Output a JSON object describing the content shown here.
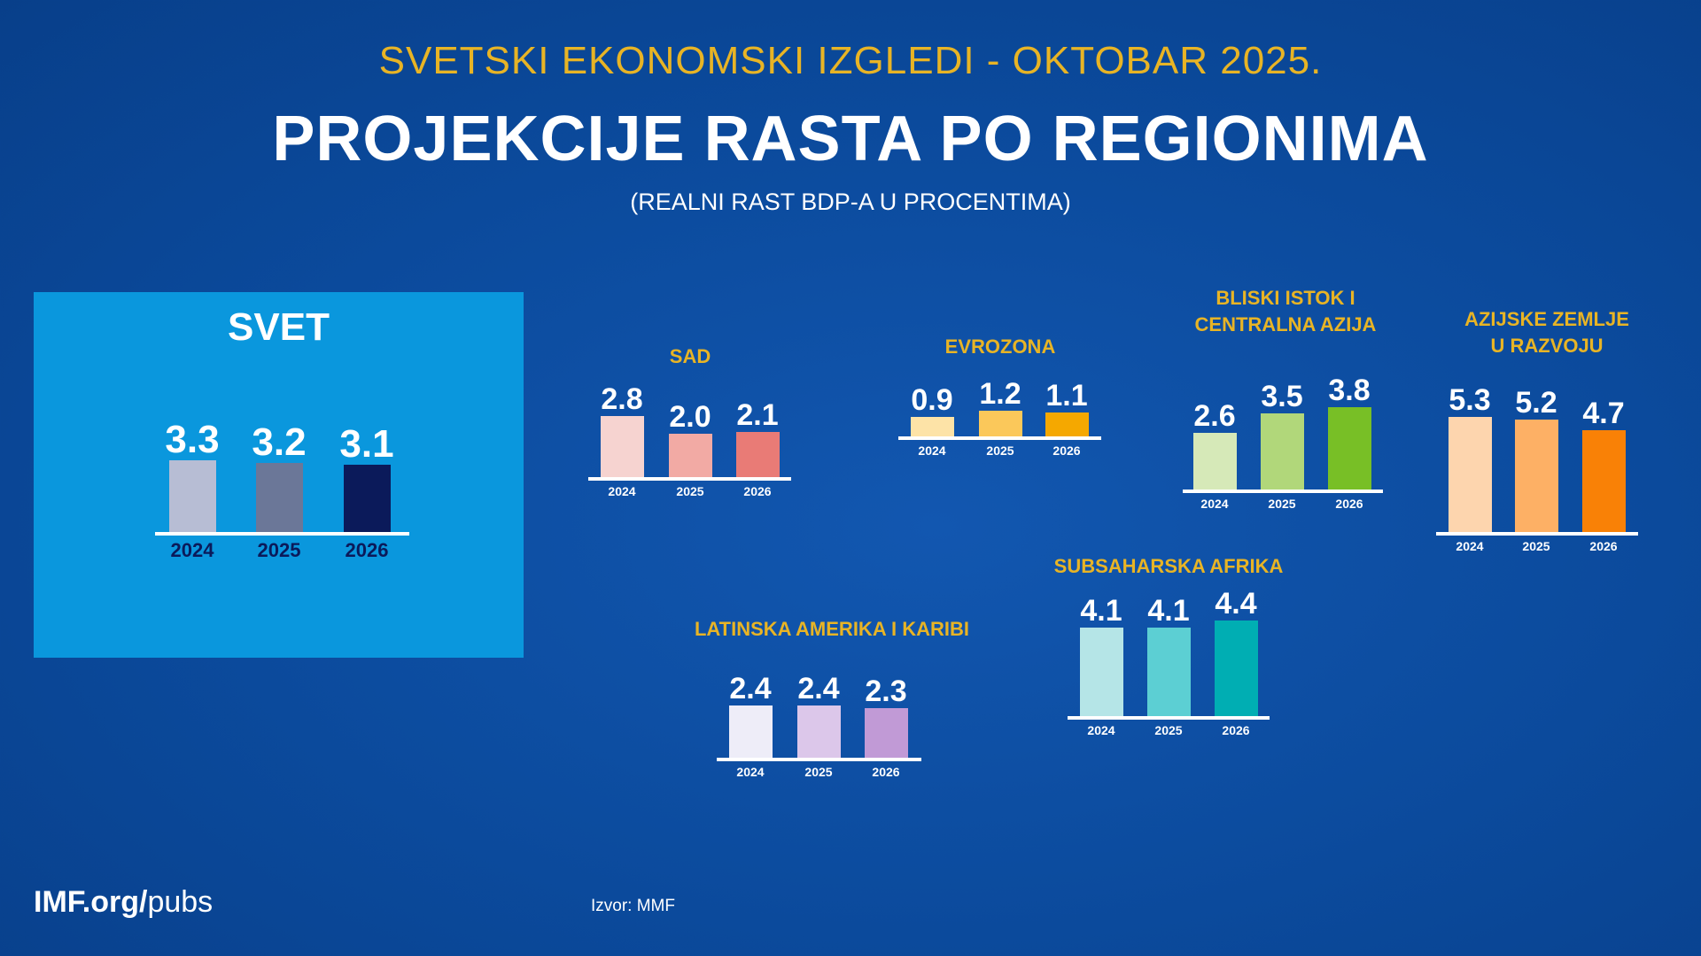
{
  "header": {
    "kicker": "SVETSKI EKONOMSKI IZGLEDI - OKTOBAR 2025.",
    "title": "PROJEKCIJE RASTA PO REGIONIMA",
    "subtitle": "(REALNI RAST BDP-A U PROCENTIMA)"
  },
  "footer": {
    "logo_bold": "IMF.org/",
    "logo_light": "pubs",
    "source": "Izvor: MMF"
  },
  "chart_data": [
    {
      "type": "bar",
      "id": "svet",
      "title": "SVET",
      "categories": [
        "2024",
        "2025",
        "2026"
      ],
      "values": [
        3.3,
        3.2,
        3.1
      ],
      "colors": [
        "#b7bdd4",
        "#6b7798",
        "#0b1a5a"
      ]
    },
    {
      "type": "bar",
      "id": "sad",
      "title": "SAD",
      "categories": [
        "2024",
        "2025",
        "2026"
      ],
      "values": [
        2.8,
        2.0,
        2.1
      ],
      "colors": [
        "#f6d3d0",
        "#f2aaa4",
        "#e97b76"
      ]
    },
    {
      "type": "bar",
      "id": "evrozona",
      "title": "EVROZONA",
      "categories": [
        "2024",
        "2025",
        "2026"
      ],
      "values": [
        0.9,
        1.2,
        1.1
      ],
      "colors": [
        "#fde3a7",
        "#fbc85a",
        "#f5a800"
      ]
    },
    {
      "type": "bar",
      "id": "bliski",
      "title": "BLISKI ISTOK I\nCENTRALNA AZIJA",
      "categories": [
        "2024",
        "2025",
        "2026"
      ],
      "values": [
        2.6,
        3.5,
        3.8
      ],
      "colors": [
        "#d6e9b8",
        "#b1d77a",
        "#78bf26"
      ]
    },
    {
      "type": "bar",
      "id": "azija",
      "title": "AZIJSKE ZEMLJE\nU RAZVOJU",
      "categories": [
        "2024",
        "2025",
        "2026"
      ],
      "values": [
        5.3,
        5.2,
        4.7
      ],
      "colors": [
        "#fdd5ae",
        "#fdb065",
        "#f98106"
      ]
    },
    {
      "type": "bar",
      "id": "latin",
      "title": "LATINSKA AMERIKA I KARIBI",
      "categories": [
        "2024",
        "2025",
        "2026"
      ],
      "values": [
        2.4,
        2.4,
        2.3
      ],
      "colors": [
        "#eeedf8",
        "#dcc7ea",
        "#c19ad6"
      ]
    },
    {
      "type": "bar",
      "id": "afrika",
      "title": "SUBSAHARSKA AFRIKA",
      "categories": [
        "2024",
        "2025",
        "2026"
      ],
      "values": [
        4.1,
        4.1,
        4.4
      ],
      "colors": [
        "#b5e5e7",
        "#5ccfd3",
        "#00aeb3"
      ]
    }
  ]
}
